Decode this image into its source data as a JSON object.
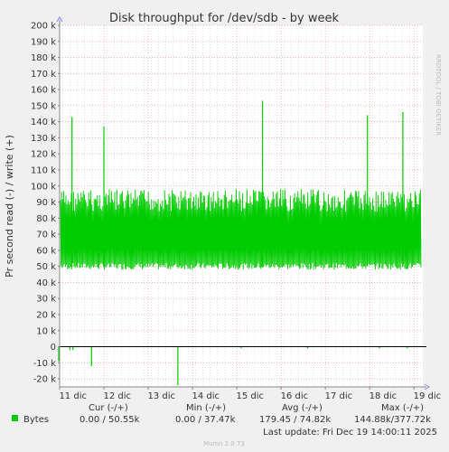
{
  "chart_data": {
    "type": "line",
    "title": "Disk throughput for /dev/sdb - by week",
    "ylabel": "Pr second read (-) / write (+)",
    "side_label": "RRDTOOL / TOBI OETIKER",
    "ylim": [
      -25000,
      200000
    ],
    "yticks": [
      -20000,
      -10000,
      0,
      10000,
      20000,
      30000,
      40000,
      50000,
      60000,
      70000,
      80000,
      90000,
      100000,
      110000,
      120000,
      130000,
      140000,
      150000,
      160000,
      170000,
      180000,
      190000,
      200000
    ],
    "ytick_labels": [
      "-20 k",
      "-10 k",
      "0",
      "10 k",
      "20 k",
      "30 k",
      "40 k",
      "50 k",
      "60 k",
      "70 k",
      "80 k",
      "90 k",
      "100 k",
      "110 k",
      "120 k",
      "130 k",
      "140 k",
      "150 k",
      "160 k",
      "170 k",
      "180 k",
      "190 k",
      "200 k"
    ],
    "xlim": [
      0,
      8.2
    ],
    "xticks": [
      0.3,
      1.3,
      2.3,
      3.3,
      4.3,
      5.3,
      6.3,
      7.3,
      8.3
    ],
    "xtick_labels": [
      "11 dic",
      "12 dic",
      "13 dic",
      "14 dic",
      "15 dic",
      "16 dic",
      "17 dic",
      "18 dic",
      "19 dic"
    ],
    "series": [
      {
        "name": "Bytes",
        "color": "#00cc00",
        "write_band": [
          50000,
          98000
        ],
        "write_spikes": [
          {
            "x": 0.28,
            "y": 143000
          },
          {
            "x": 1.0,
            "y": 137000
          },
          {
            "x": 4.58,
            "y": 153000
          },
          {
            "x": 6.95,
            "y": 144000
          },
          {
            "x": 7.75,
            "y": 146000
          }
        ],
        "read_spikes": [
          {
            "x": -0.02,
            "y": -9000
          },
          {
            "x": 0.23,
            "y": -2000
          },
          {
            "x": 0.3,
            "y": -2000
          },
          {
            "x": 0.72,
            "y": -12000
          },
          {
            "x": 2.67,
            "y": -24000
          },
          {
            "x": 4.1,
            "y": -1000
          },
          {
            "x": 5.6,
            "y": -1000
          },
          {
            "x": 7.22,
            "y": -1000
          },
          {
            "x": 7.85,
            "y": -1000
          }
        ]
      }
    ],
    "grid": true,
    "legend_position": "bottom-left"
  },
  "legend": {
    "headers": {
      "cur": "Cur (-/+)",
      "min": "Min (-/+)",
      "avg": "Avg (-/+)",
      "max": "Max (-/+)"
    },
    "rows": [
      {
        "name": "Bytes",
        "color": "#00cc00",
        "cur": "0.00 / 50.55k",
        "min": "0.00 / 37.47k",
        "avg": "179.45 / 74.82k",
        "max": "144.88k/377.72k"
      }
    ]
  },
  "last_update": "Last update: Fri Dec 19 14:00:11 2025",
  "footer": "Munin 2.0.73",
  "colors": {
    "background": "#f0f0f0",
    "plot_area": "#ffffff",
    "major_grid": "#f08080",
    "minor_grid": "#c8c8c8",
    "zero_line": "#000000",
    "axis": "#888888"
  }
}
